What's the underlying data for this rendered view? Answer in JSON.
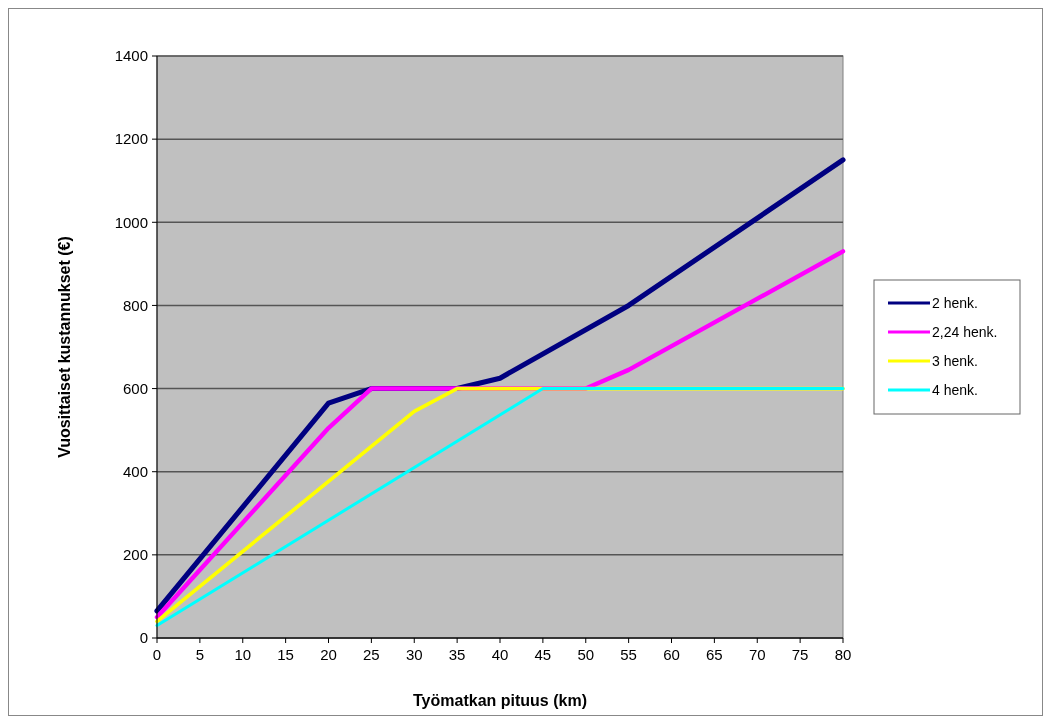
{
  "chart_data": {
    "type": "line",
    "xlabel": "Työmatkan pituus (km)",
    "ylabel": "Vuosittaiset kustannukset (€)",
    "xlim": [
      0,
      80
    ],
    "xticks": [
      0,
      5,
      10,
      15,
      20,
      25,
      30,
      35,
      40,
      45,
      50,
      55,
      60,
      65,
      70,
      75,
      80
    ],
    "ylim": [
      0,
      1400
    ],
    "yticks": [
      0,
      200,
      400,
      600,
      800,
      1000,
      1200,
      1400
    ],
    "grid": "y",
    "legend": "right",
    "marker": "none",
    "line_style": "solid",
    "series": [
      {
        "name": "2 henk.",
        "color": "#000080",
        "x": [
          0,
          20,
          25,
          35,
          40,
          55,
          80
        ],
        "values": [
          65,
          565,
          600,
          600,
          625,
          800,
          1150
        ]
      },
      {
        "name": "2,24 henk.",
        "color": "#ff00ff",
        "x": [
          0,
          20,
          25,
          50,
          55,
          80
        ],
        "values": [
          50,
          505,
          600,
          600,
          645,
          930
        ]
      },
      {
        "name": "3 henk.",
        "color": "#ffff00",
        "x": [
          0,
          30,
          35,
          80
        ],
        "values": [
          40,
          545,
          600,
          600
        ]
      },
      {
        "name": "4 henk.",
        "color": "#00ffff",
        "x": [
          0,
          45,
          80
        ],
        "values": [
          30,
          600,
          600
        ]
      }
    ]
  }
}
